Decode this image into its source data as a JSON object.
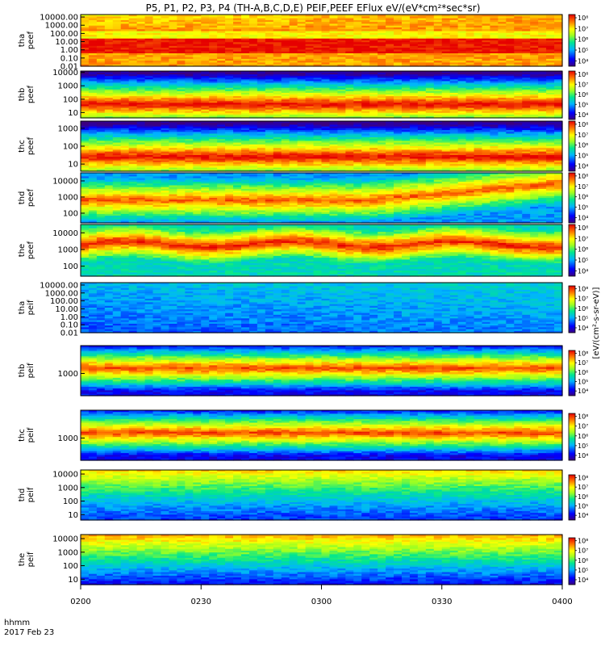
{
  "chart_data": {
    "type": "heatmap",
    "title": "P5, P1, P2, P3, P4 (TH-A,B,C,D,E) PEIF,PEEF EFlux eV/(eV*cm²*sec*sr)",
    "colorbar_label": "[eV/(cm²-s-sr-eV)]",
    "colorbar_ticks": [
      "10⁴",
      "10⁵",
      "10⁶",
      "10⁷",
      "10⁸"
    ],
    "colorbar_range_log10": [
      3.5,
      8.3
    ],
    "x_axis": {
      "row1_label": "hhmm",
      "row2_label": "2017 Feb 23",
      "tick_labels": [
        "0200",
        "0230",
        "0300",
        "0330",
        "0400"
      ],
      "range_minutes": [
        0,
        120
      ]
    },
    "panels": [
      {
        "id": "tha-peef",
        "label1": "tha",
        "label2": "peef",
        "ticks": [
          "10000.00",
          "1000.00",
          "100.00",
          "10.00",
          "1.00",
          "0.10",
          "0.01"
        ],
        "ylim_log10": [
          -2,
          4.3
        ]
      },
      {
        "id": "thb-peef",
        "label1": "thb",
        "label2": "peef",
        "ticks": [
          "10000",
          "1000",
          "100",
          "10"
        ],
        "ylim_log10": [
          0.6,
          4.1
        ]
      },
      {
        "id": "thc-peef",
        "label1": "thc",
        "label2": "peef",
        "ticks": [
          "1000",
          "100",
          "10"
        ],
        "ylim_log10": [
          0.6,
          3.4
        ]
      },
      {
        "id": "thd-peef",
        "label1": "thd",
        "label2": "peef",
        "ticks": [
          "10000",
          "1000",
          "100"
        ],
        "ylim_log10": [
          1.4,
          4.5
        ]
      },
      {
        "id": "the-peef",
        "label1": "the",
        "label2": "peef",
        "ticks": [
          "10000",
          "1000",
          "100"
        ],
        "ylim_log10": [
          1.4,
          4.5
        ]
      },
      {
        "id": "tha-peif",
        "label1": "tha",
        "label2": "peif",
        "ticks": [
          "10000.00",
          "1000.00",
          "100.00",
          "10.00",
          "1.00",
          "0.10",
          "0.01"
        ],
        "ylim_log10": [
          -2,
          4.3
        ]
      },
      {
        "id": "thb-peif",
        "label1": "thb",
        "label2": "peif",
        "ticks": [
          "1000"
        ],
        "ylim_log10": [
          2.2,
          4.0
        ]
      },
      {
        "id": "thc-peif",
        "label1": "thc",
        "label2": "peif",
        "ticks": [
          "1000"
        ],
        "ylim_log10": [
          2.2,
          4.0
        ]
      },
      {
        "id": "thd-peif",
        "label1": "thd",
        "label2": "peif",
        "ticks": [
          "10000",
          "1000",
          "100",
          "10"
        ],
        "ylim_log10": [
          0.6,
          4.3
        ]
      },
      {
        "id": "the-peif",
        "label1": "the",
        "label2": "peif",
        "ticks": [
          "10000",
          "1000",
          "100",
          "10"
        ],
        "ylim_log10": [
          0.6,
          4.3
        ]
      }
    ]
  }
}
